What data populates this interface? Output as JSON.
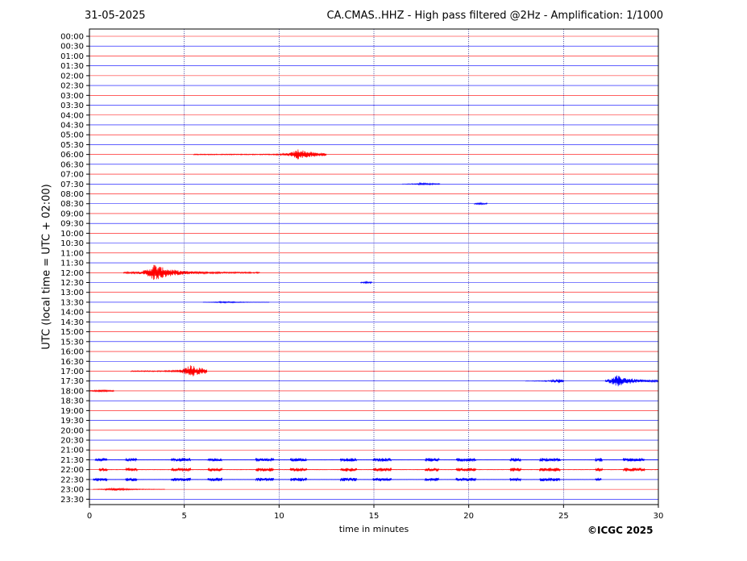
{
  "header": {
    "date": "31-05-2025",
    "title": "CA.CMAS..HHZ - High pass filtered @2Hz - Amplification: 1/1000"
  },
  "footer": {
    "copyright": "©ICGC 2025"
  },
  "colors": {
    "even_trace": "#ff0000",
    "odd_trace": "#0000ff",
    "grid": "#000080",
    "background": "#ffffff"
  },
  "chart_data": {
    "type": "line",
    "title": "CA.CMAS..HHZ - High pass filtered @2Hz - Amplification: 1/1000",
    "xlabel": "time in minutes",
    "ylabel": "UTC (local time = UTC + 02:00)",
    "xlim": [
      0,
      30
    ],
    "xticks": [
      "0",
      "5",
      "10",
      "15",
      "20",
      "25",
      "30"
    ],
    "grid": "vertical dotted at 5, 10, 15, 20, 25",
    "legend": "none",
    "rows": [
      "00:00",
      "00:30",
      "01:00",
      "01:30",
      "02:00",
      "02:30",
      "03:00",
      "03:30",
      "04:00",
      "04:30",
      "05:00",
      "05:30",
      "06:00",
      "06:30",
      "07:00",
      "07:30",
      "08:00",
      "08:30",
      "09:00",
      "09:30",
      "10:00",
      "10:30",
      "11:00",
      "11:30",
      "12:00",
      "12:30",
      "13:00",
      "13:30",
      "14:00",
      "14:30",
      "15:00",
      "15:30",
      "16:00",
      "16:30",
      "17:00",
      "17:30",
      "18:00",
      "18:30",
      "19:00",
      "19:30",
      "20:00",
      "20:30",
      "21:00",
      "21:30",
      "22:00",
      "22:30",
      "23:00",
      "23:30"
    ],
    "events": [
      {
        "row": 12,
        "start": 5.5,
        "end": 12.5,
        "peak": 11.0,
        "amp": 0.9
      },
      {
        "row": 15,
        "start": 16.5,
        "end": 18.5,
        "peak": 17.5,
        "amp": 0.2
      },
      {
        "row": 17,
        "start": 20.3,
        "end": 21.0,
        "peak": 20.6,
        "amp": 0.15
      },
      {
        "row": 24,
        "start": 1.8,
        "end": 9.0,
        "peak": 3.4,
        "amp": 1.4
      },
      {
        "row": 25,
        "start": 14.3,
        "end": 14.9,
        "peak": 14.6,
        "amp": 0.15
      },
      {
        "row": 27,
        "start": 6.0,
        "end": 9.5,
        "peak": 7.0,
        "amp": 0.15
      },
      {
        "row": 34,
        "start": 2.2,
        "end": 6.2,
        "peak": 5.3,
        "amp": 1.0
      },
      {
        "row": 35,
        "start": 23.0,
        "end": 25.0,
        "peak": 24.7,
        "amp": 0.35
      },
      {
        "row": 35,
        "start": 27.2,
        "end": 30.0,
        "peak": 27.8,
        "amp": 0.9
      },
      {
        "row": 36,
        "start": 0.0,
        "end": 1.3,
        "peak": 0.5,
        "amp": 0.2
      },
      {
        "row": 43,
        "start": 0.3,
        "end": 30.0,
        "peak": null,
        "amp": 0.3
      },
      {
        "row": 44,
        "start": 0.5,
        "end": 30.0,
        "peak": null,
        "amp": 0.3
      },
      {
        "row": 45,
        "start": 0.2,
        "end": 27.0,
        "peak": null,
        "amp": 0.3
      },
      {
        "row": 46,
        "start": 0.2,
        "end": 4.0,
        "peak": 1.2,
        "amp": 0.25
      }
    ]
  }
}
